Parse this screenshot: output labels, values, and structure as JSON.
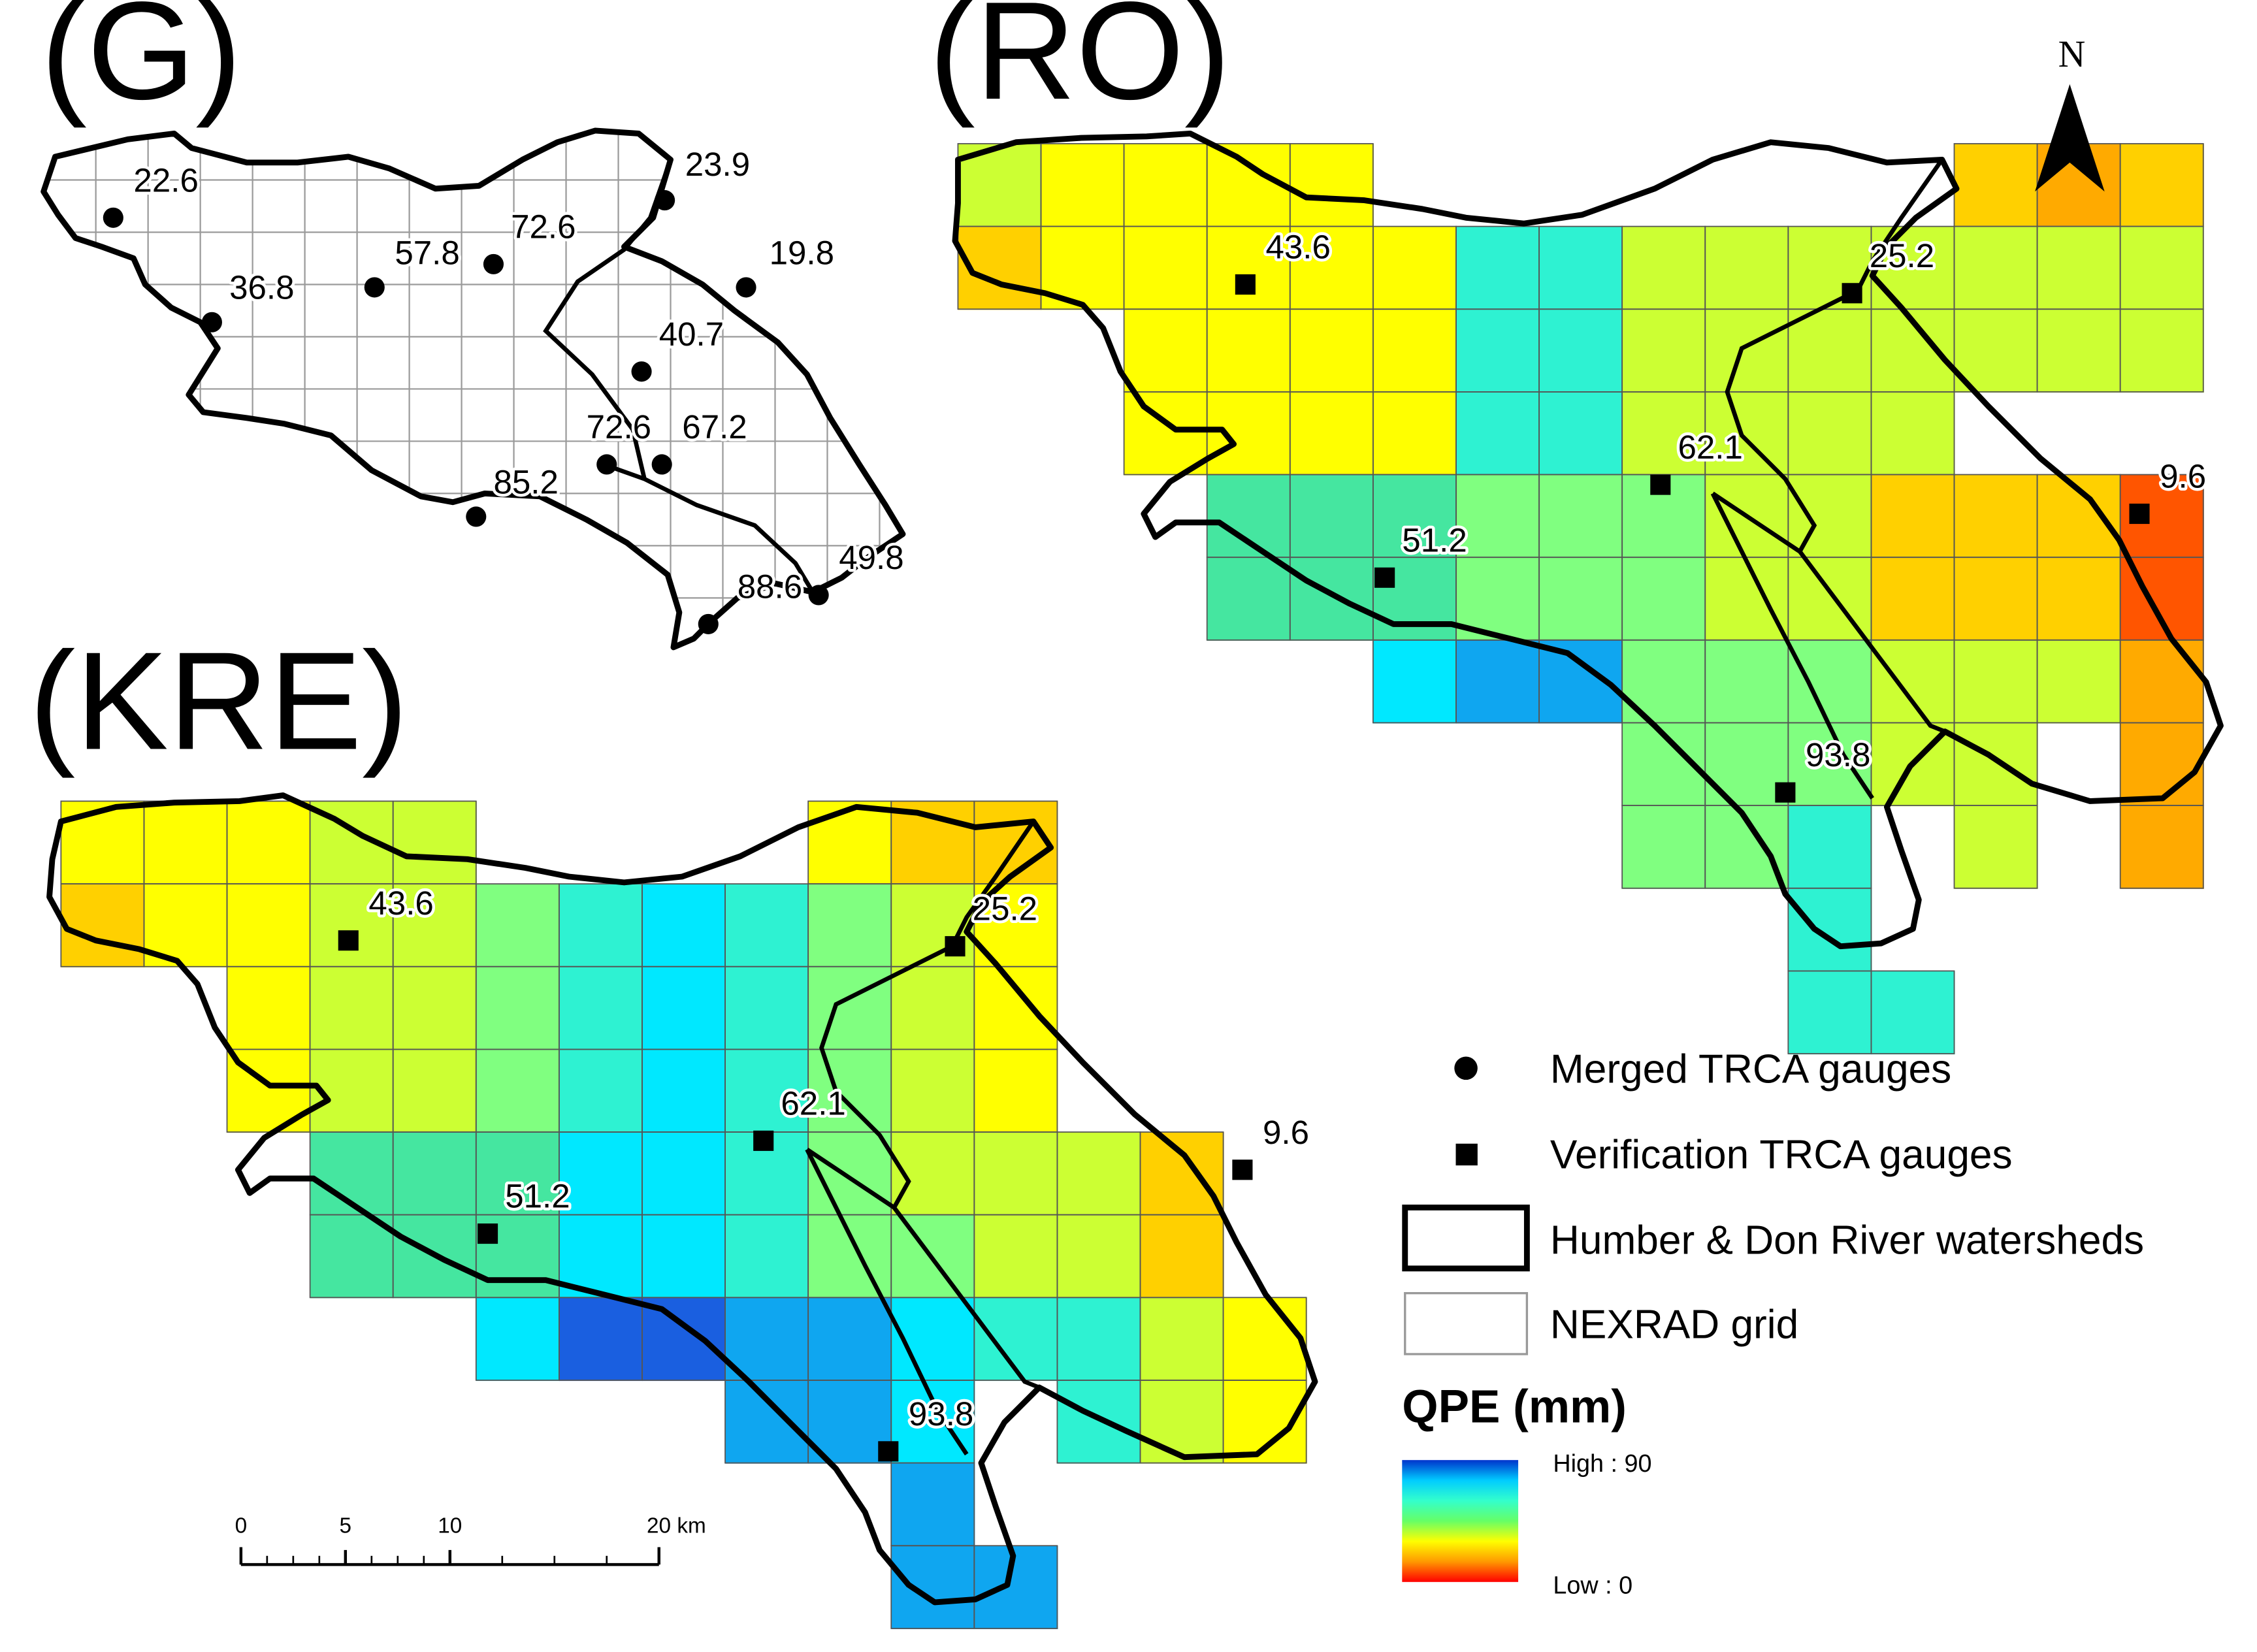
{
  "panels": {
    "G": {
      "label": "(G)",
      "gauges": [
        {
          "label": "22.6"
        },
        {
          "label": "23.9"
        },
        {
          "label": "36.8"
        },
        {
          "label": "57.8"
        },
        {
          "label": "72.6"
        },
        {
          "label": "19.8"
        },
        {
          "label": "40.7"
        },
        {
          "label": "72.6"
        },
        {
          "label": "67.2"
        },
        {
          "label": "85.2"
        },
        {
          "label": "88.6"
        },
        {
          "label": "49.8"
        }
      ]
    },
    "RO": {
      "label": "(RO)",
      "gauges": [
        {
          "label": "43.6"
        },
        {
          "label": "25.2"
        },
        {
          "label": "62.1"
        },
        {
          "label": "9.6"
        },
        {
          "label": "51.2"
        },
        {
          "label": "93.8"
        }
      ]
    },
    "KRE": {
      "label": "(KRE)",
      "gauges": [
        {
          "label": "43.6"
        },
        {
          "label": "25.2"
        },
        {
          "label": "62.1"
        },
        {
          "label": "9.6"
        },
        {
          "label": "51.2"
        },
        {
          "label": "93.8"
        }
      ]
    }
  },
  "north_arrow": {
    "label": "N"
  },
  "legend": {
    "items": [
      {
        "symbol": "circle",
        "label": "Merged TRCA gauges"
      },
      {
        "symbol": "square",
        "label": "Verification TRCA gauges"
      },
      {
        "symbol": "thick-box",
        "label": "Humber & Don River watersheds"
      },
      {
        "symbol": "thin-box",
        "label": "NEXRAD grid"
      }
    ],
    "qpe_title": "QPE (mm)",
    "qpe_high": "High : 90",
    "qpe_low": "Low : 0",
    "qpe_ramp": [
      "#0033cc",
      "#00ccff",
      "#33ffcc",
      "#66ff66",
      "#ffff00",
      "#ff9900",
      "#ff0000"
    ]
  },
  "scale_bar": {
    "ticks": [
      "0",
      "5",
      "10",
      "20 km"
    ]
  },
  "colors": {
    "blue_deep": "#1a5fe0",
    "blue": "#0fa6f0",
    "cyan": "#00e8ff",
    "aqua": "#2ef2d2",
    "seagreen": "#45e6a0",
    "lightgreen": "#80ff80",
    "yellowgreen": "#ccff33",
    "yellow": "#ffff00",
    "gold": "#ffd000",
    "orange": "#ffaa00",
    "red_orange": "#ff5500"
  }
}
